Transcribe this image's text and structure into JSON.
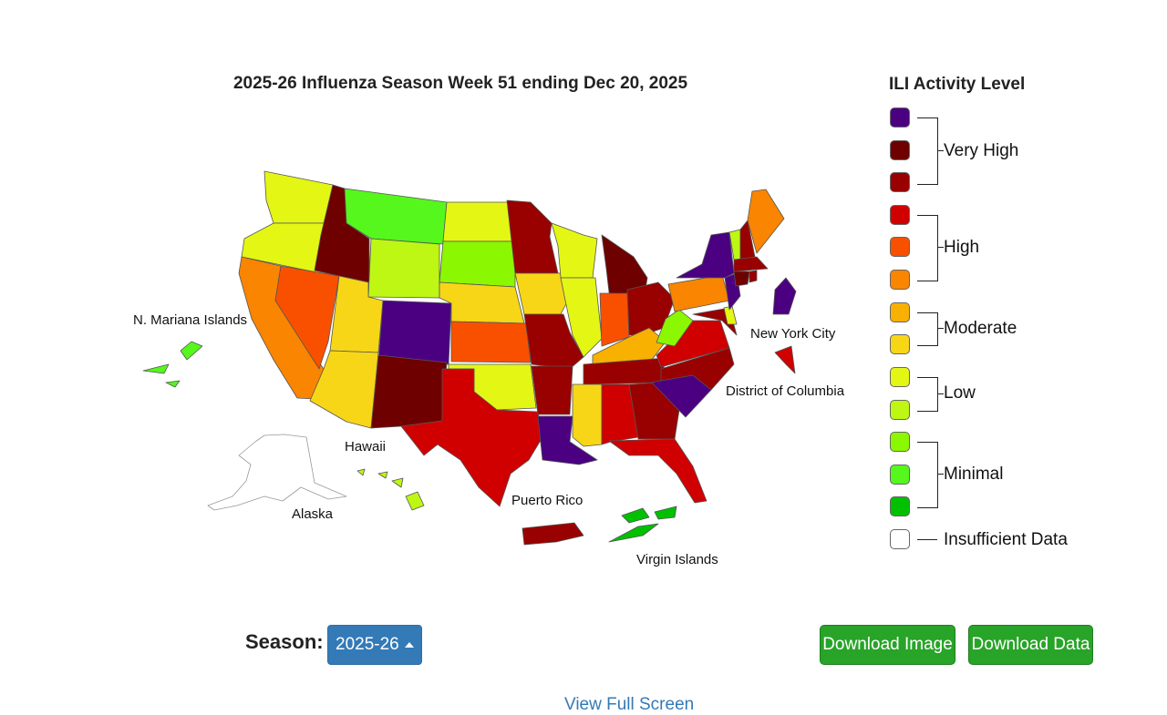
{
  "map": {
    "title": "2025-26 Influenza Season Week 51 ending Dec 20, 2025",
    "labels": {
      "n_mariana": "N. Mariana Islands",
      "hawaii": "Hawaii",
      "alaska": "Alaska",
      "puerto_rico": "Puerto Rico",
      "virgin_islands": "Virgin Islands",
      "new_york_city": "New York City",
      "dc": "District of Columbia"
    },
    "colors": {
      "vh3": "#4b0082",
      "vh2": "#6e0000",
      "vh1": "#990000",
      "h3": "#d00000",
      "h2": "#f95000",
      "h1": "#fa8500",
      "m2": "#f8b100",
      "m1": "#f7d617",
      "l2": "#e4f614",
      "l1": "#bdf713",
      "mi3": "#8bf700",
      "mi2": "#55f71c",
      "mi1": "#00c000",
      "none": "#ffffff"
    }
  },
  "legend": {
    "title": "ILI Activity Level",
    "groups": {
      "very_high": "Very High",
      "high": "High",
      "moderate": "Moderate",
      "low": "Low",
      "minimal": "Minimal",
      "insufficient": "Insufficient Data"
    }
  },
  "controls": {
    "season_label": "Season:",
    "season_value": "2025-26",
    "download_image": "Download Image",
    "download_data": "Download Data",
    "full_screen": "View Full Screen"
  }
}
